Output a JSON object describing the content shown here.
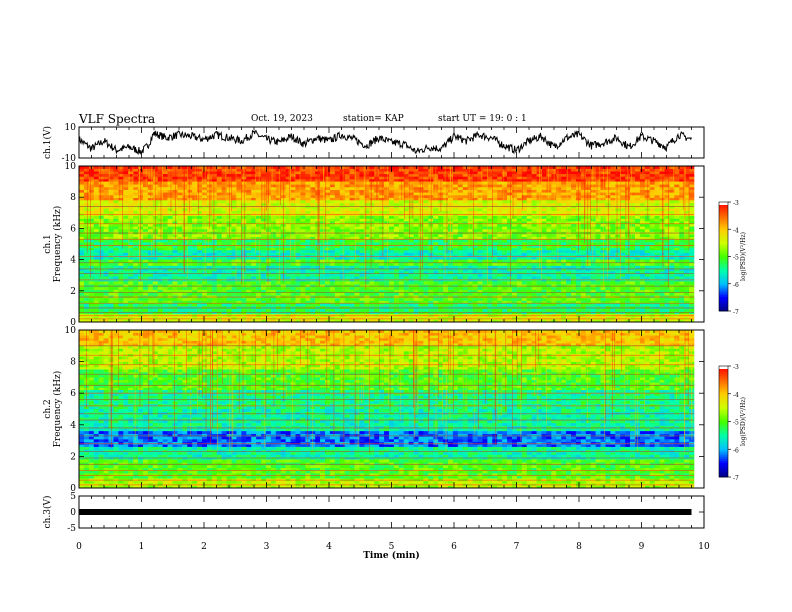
{
  "header": {
    "title": "VLF Spectra",
    "date": "Oct. 19, 2023",
    "station": "station= KAP",
    "start": "start  UT =   19: 0  : 1"
  },
  "chart_data": [
    {
      "type": "line",
      "panel": "ch1-waveform",
      "ylabel": "ch.1(V)",
      "ylim": [
        -10,
        10
      ],
      "yticks": [
        "10",
        "-10"
      ],
      "xlim": [
        0,
        10
      ],
      "x": [
        0,
        0.2,
        0.4,
        0.6,
        0.8,
        1.0,
        1.1,
        1.2,
        1.4,
        1.6,
        1.8,
        2.0,
        2.2,
        2.4,
        2.6,
        2.8,
        3.0,
        3.2,
        3.4,
        3.6,
        3.8,
        4.0,
        4.2,
        4.4,
        4.6,
        4.8,
        5.0,
        5.2,
        5.4,
        5.6,
        5.8,
        6.0,
        6.2,
        6.4,
        6.6,
        6.8,
        7.0,
        7.2,
        7.4,
        7.6,
        7.8,
        8.0,
        8.2,
        8.4,
        8.6,
        8.8,
        9.0,
        9.2,
        9.4,
        9.6,
        9.8
      ],
      "y": [
        2,
        -4,
        1,
        -5,
        -3,
        -6,
        -2,
        6,
        3,
        5,
        4,
        2,
        5,
        3,
        1,
        6,
        2,
        0,
        4,
        -1,
        3,
        1,
        5,
        2,
        -2,
        3,
        0,
        -1,
        -6,
        -3,
        -4,
        4,
        1,
        5,
        3,
        -2,
        -5,
        1,
        4,
        -3,
        3,
        5,
        -2,
        0,
        3,
        -3,
        4,
        1,
        -3,
        5,
        2
      ]
    },
    {
      "type": "heatmap",
      "panel": "ch1-spectrogram",
      "ylabel": "ch.1 Frequency (kHz)",
      "ylim": [
        0,
        10
      ],
      "yticks": [
        "0",
        "2",
        "4",
        "6",
        "8",
        "10"
      ],
      "xlim": [
        0,
        10
      ],
      "bands": [
        {
          "f": [
            9.0,
            10.0
          ],
          "level": -3.3
        },
        {
          "f": [
            7.8,
            9.0
          ],
          "level": -3.8
        },
        {
          "f": [
            6.8,
            7.8
          ],
          "level": -4.4
        },
        {
          "f": [
            5.3,
            6.8
          ],
          "level": -4.8
        },
        {
          "f": [
            4.6,
            5.3
          ],
          "level": -5.2
        },
        {
          "f": [
            4.0,
            4.6
          ],
          "level": -5.6
        },
        {
          "f": [
            3.6,
            4.0
          ],
          "level": -5.0
        },
        {
          "f": [
            2.6,
            3.6
          ],
          "level": -5.5
        },
        {
          "f": [
            1.2,
            2.6
          ],
          "level": -5.0
        },
        {
          "f": [
            0.5,
            1.2
          ],
          "level": -5.3
        },
        {
          "f": [
            0.0,
            0.5
          ],
          "level": -4.4
        }
      ],
      "lines_khz": [
        0.2,
        0.4,
        0.6,
        0.9,
        1.2,
        1.6,
        1.9,
        2.3,
        2.7,
        3.1,
        3.4,
        3.8,
        4.2,
        4.9,
        5.3,
        5.7,
        6.3,
        6.9,
        7.4
      ]
    },
    {
      "type": "heatmap",
      "panel": "ch2-spectrogram",
      "ylabel": "ch.2 Frequency (kHz)",
      "ylim": [
        0,
        10
      ],
      "yticks": [
        "0",
        "2",
        "4",
        "6",
        "8",
        "10"
      ],
      "xlim": [
        0,
        10
      ],
      "bands": [
        {
          "f": [
            9.0,
            10.0
          ],
          "level": -4.0
        },
        {
          "f": [
            7.5,
            9.0
          ],
          "level": -4.6
        },
        {
          "f": [
            6.2,
            7.5
          ],
          "level": -5.0
        },
        {
          "f": [
            5.0,
            6.2
          ],
          "level": -5.4
        },
        {
          "f": [
            3.6,
            5.0
          ],
          "level": -5.5
        },
        {
          "f": [
            2.6,
            3.6
          ],
          "level": -6.2
        },
        {
          "f": [
            1.8,
            2.6
          ],
          "level": -5.5
        },
        {
          "f": [
            0.6,
            1.8
          ],
          "level": -5.0
        },
        {
          "f": [
            0.0,
            0.6
          ],
          "level": -4.6
        }
      ],
      "lines_khz": [
        0.2,
        0.5,
        0.8,
        1.1,
        1.5,
        1.9,
        2.3,
        2.8,
        3.3,
        3.8,
        4.3,
        4.7,
        5.2,
        5.6,
        6.0,
        6.5,
        7.2,
        7.8,
        8.4,
        9.0
      ]
    },
    {
      "type": "line",
      "panel": "ch3-waveform",
      "ylabel": "ch.3(V)",
      "ylim": [
        -5,
        5
      ],
      "yticks": [
        "5",
        "0",
        "-5"
      ],
      "xlim": [
        0,
        10
      ],
      "xlabel": "Time  (min)",
      "xticks": [
        "0",
        "1",
        "2",
        "3",
        "4",
        "5",
        "6",
        "7",
        "8",
        "9",
        "10"
      ],
      "x": [
        0,
        9.8
      ],
      "y": [
        0,
        0
      ]
    }
  ],
  "colorbar": {
    "label": "log(PSD)(V²/Hz)",
    "range": [
      -7,
      -3
    ],
    "ticks": [
      "-3",
      "-4",
      "-5",
      "-6",
      "-7"
    ],
    "colors": [
      "#00007f",
      "#0000ff",
      "#00bfff",
      "#00ffaa",
      "#44ff00",
      "#ccff00",
      "#ffcc00",
      "#ff6600",
      "#ff0000",
      "#ffffff"
    ]
  }
}
